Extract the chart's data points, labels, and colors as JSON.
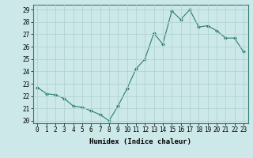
{
  "x": [
    0,
    1,
    2,
    3,
    4,
    5,
    6,
    7,
    8,
    9,
    10,
    11,
    12,
    13,
    14,
    15,
    16,
    17,
    18,
    19,
    20,
    21,
    22,
    23
  ],
  "y": [
    22.7,
    22.2,
    22.1,
    21.8,
    21.2,
    21.1,
    20.8,
    20.5,
    20.0,
    21.2,
    22.6,
    24.2,
    25.0,
    27.1,
    26.2,
    28.9,
    28.2,
    29.0,
    27.6,
    27.7,
    27.3,
    26.7,
    26.7,
    25.6
  ],
  "line_color": "#2e7d6e",
  "marker": "D",
  "marker_size": 2,
  "bg_color": "#cce8e8",
  "grid_color": "#b0d4d4",
  "xlabel": "Humidex (Indice chaleur)",
  "ylim": [
    19.8,
    29.4
  ],
  "xlim": [
    -0.5,
    23.5
  ],
  "yticks": [
    20,
    21,
    22,
    23,
    24,
    25,
    26,
    27,
    28,
    29
  ],
  "xticks": [
    0,
    1,
    2,
    3,
    4,
    5,
    6,
    7,
    8,
    9,
    10,
    11,
    12,
    13,
    14,
    15,
    16,
    17,
    18,
    19,
    20,
    21,
    22,
    23
  ],
  "xlabel_fontsize": 6.5,
  "tick_fontsize": 5.5,
  "lw": 0.8
}
